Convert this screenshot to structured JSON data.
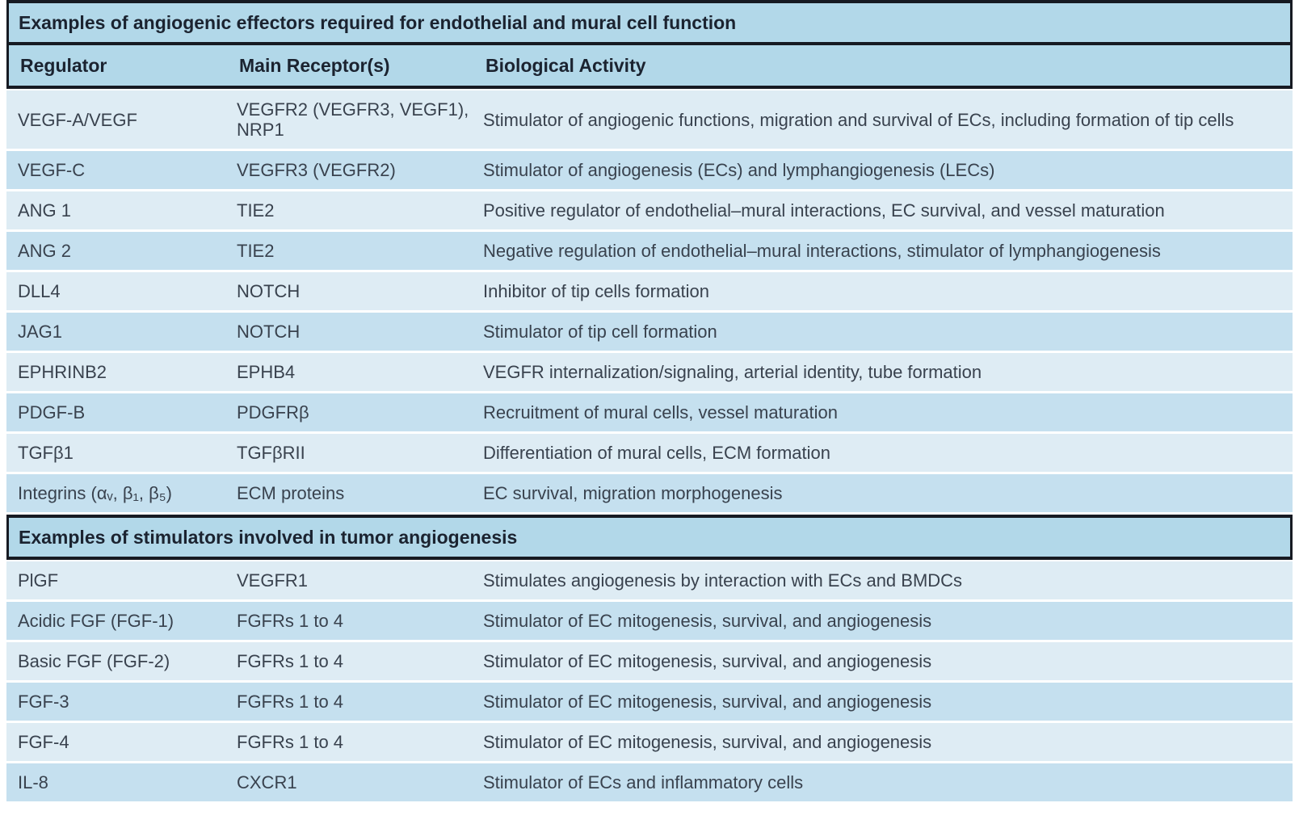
{
  "colors": {
    "header_band": "#b2d8e9",
    "row_light": "#deecf4",
    "row_dark": "#c5e0ef",
    "frame_rule": "#161a22",
    "body_text": "#39424e",
    "heading_text": "#1b2330"
  },
  "table": {
    "section1": {
      "title": "Examples of angiogenic effectors required for endothelial and mural cell function"
    },
    "columns": {
      "regulator": "Regulator",
      "receptor": "Main Receptor(s)",
      "activity": "Biological Activity"
    },
    "rows1": [
      {
        "regulator": "VEGF-A/VEGF",
        "receptor": "VEGFR2 (VEGFR3, VEGF1),\nNRP1",
        "activity": "Stimulator of angiogenic functions, migration and survival of ECs, including formation of tip cells"
      },
      {
        "regulator": "VEGF-C",
        "receptor": "VEGFR3 (VEGFR2)",
        "activity": "Stimulator of angiogenesis (ECs) and lymphangiogenesis (LECs)"
      },
      {
        "regulator": "ANG 1",
        "receptor": "TIE2",
        "activity": "Positive regulator of endothelial–mural interactions, EC survival, and vessel maturation"
      },
      {
        "regulator": "ANG 2",
        "receptor": "TIE2",
        "activity": "Negative regulation of endothelial–mural interactions, stimulator of lymphangiogenesis"
      },
      {
        "regulator": "DLL4",
        "receptor": "NOTCH",
        "activity": "Inhibitor of tip cells formation"
      },
      {
        "regulator": "JAG1",
        "receptor": "NOTCH",
        "activity": "Stimulator of tip cell formation"
      },
      {
        "regulator": "EPHRINB2",
        "receptor": "EPHB4",
        "activity": "VEGFR internalization/signaling, arterial identity, tube formation"
      },
      {
        "regulator": "PDGF-B",
        "receptor": "PDGFRβ",
        "activity": "Recruitment of mural cells, vessel maturation"
      },
      {
        "regulator": "TGFβ1",
        "receptor": "TGFβRII",
        "activity": "Differentiation of mural cells, ECM formation"
      },
      {
        "regulator": "Integrins (αᵥ, β₁, β₅)",
        "receptor": "ECM proteins",
        "activity": "EC survival, migration morphogenesis"
      }
    ],
    "section2": {
      "title": "Examples of stimulators involved in tumor angiogenesis"
    },
    "rows2": [
      {
        "regulator": "PlGF",
        "receptor": "VEGFR1",
        "activity": "Stimulates angiogenesis by interaction with ECs and BMDCs"
      },
      {
        "regulator": "Acidic FGF (FGF-1)",
        "receptor": "FGFRs 1 to 4",
        "activity": "Stimulator of EC mitogenesis, survival, and angiogenesis"
      },
      {
        "regulator": "Basic FGF (FGF-2)",
        "receptor": "FGFRs 1 to 4",
        "activity": "Stimulator of EC mitogenesis, survival, and angiogenesis"
      },
      {
        "regulator": "FGF-3",
        "receptor": "FGFRs 1 to 4",
        "activity": "Stimulator of EC mitogenesis, survival, and angiogenesis"
      },
      {
        "regulator": "FGF-4",
        "receptor": "FGFRs 1 to 4",
        "activity": "Stimulator of EC mitogenesis, survival, and angiogenesis"
      },
      {
        "regulator": "IL-8",
        "receptor": "CXCR1",
        "activity": "Stimulator of ECs and inflammatory cells"
      }
    ]
  }
}
